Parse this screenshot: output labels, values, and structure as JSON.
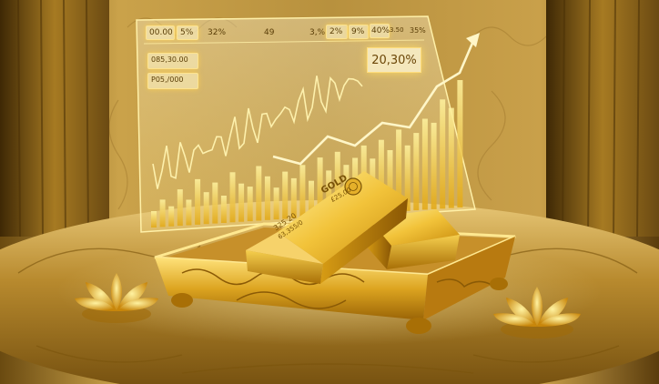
{
  "chart_screen": {
    "top_labels": [
      "00.00",
      "5%",
      "32%",
      "49",
      "3,%",
      "2%",
      "9%",
      "40%",
      "3.50",
      "35%"
    ],
    "side_labels": [
      "085,30.00",
      "P05,/000"
    ],
    "badge": "20,30%"
  },
  "gold_bar": {
    "brand": "GOLD",
    "weight": "£25,00",
    "front_line1": "325 20",
    "front_line2": "63,355/0"
  },
  "colors": {
    "gold": "#e7b321",
    "dark_gold": "#7a5306",
    "glow": "#fff3b0"
  }
}
